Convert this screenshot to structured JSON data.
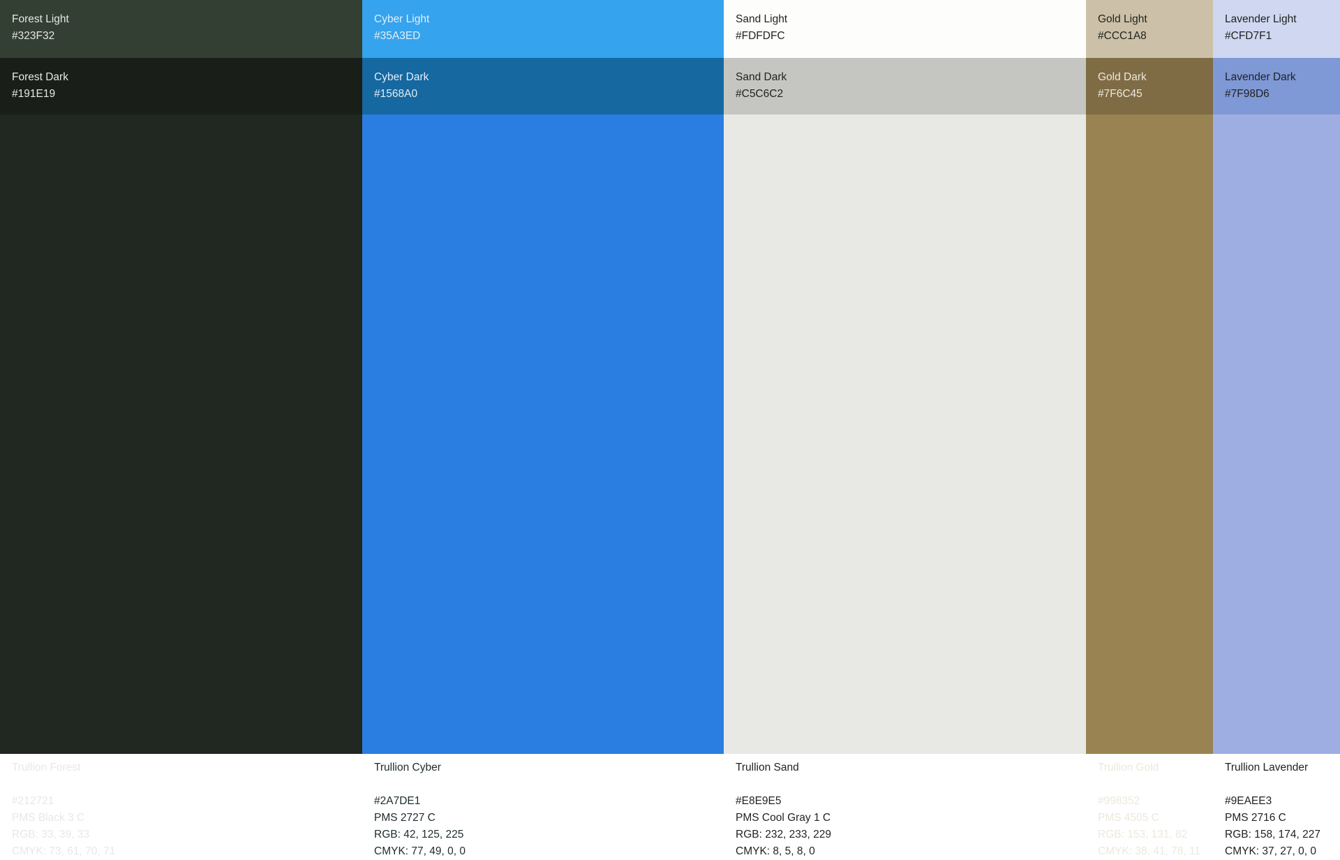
{
  "palette": [
    {
      "light": {
        "name": "Forest Light",
        "hex": "#323F32",
        "text_color": "#E6E8E6"
      },
      "dark": {
        "name": "Forest Dark",
        "hex": "#191E19",
        "text_color": "#E6E8E6"
      },
      "main": {
        "name": "Trullion Forest",
        "hex": "#212721",
        "pms": "PMS Black 3 C",
        "rgb": "RGB: 33, 39, 33",
        "cmyk": "CMYK:  73, 61, 70, 71",
        "text_color": "#E6E8E6"
      }
    },
    {
      "light": {
        "name": "Cyber Light",
        "hex": "#35A3ED",
        "text_color": "#E3EEF8"
      },
      "dark": {
        "name": "Cyber Dark",
        "hex": "#1568A0",
        "text_color": "#E3EEF8"
      },
      "main": {
        "name": "Trullion Cyber",
        "hex": "#2A7DE1",
        "pms": "PMS 2727 C",
        "rgb": "RGB: 42, 125, 225",
        "cmyk": "CMYK:  77, 49, 0, 0",
        "text_color": "#1E2A2E"
      }
    },
    {
      "light": {
        "name": "Sand Light",
        "hex": "#FDFDFC",
        "text_color": "#1E221E"
      },
      "dark": {
        "name": "Sand Dark",
        "hex": "#C5C6C2",
        "text_color": "#1E221E"
      },
      "main": {
        "name": "Trullion Sand",
        "hex": "#E8E9E5",
        "pms": "PMS Cool Gray 1 C",
        "rgb": "RGB: 232, 233, 229",
        "cmyk": "CMYK:  8, 5, 8, 0",
        "text_color": "#1E221E"
      }
    },
    {
      "light": {
        "name": "Gold Light",
        "hex": "#CCC1A8",
        "text_color": "#1E221E"
      },
      "dark": {
        "name": "Gold Dark",
        "hex": "#7F6C45",
        "text_color": "#EDE8DC"
      },
      "main": {
        "name": "Trullion Gold",
        "hex": "#998352",
        "pms": "PMS 4505 C",
        "rgb": "RGB: 153, 131, 82",
        "cmyk": "CMYK:  38, 41, 78, 11",
        "text_color": "#EDE8DC"
      }
    },
    {
      "light": {
        "name": "Lavender Light",
        "hex": "#CFD7F1",
        "text_color": "#1E221E"
      },
      "dark": {
        "name": "Lavender Dark",
        "hex": "#7F98D6",
        "text_color": "#1E221E"
      },
      "main": {
        "name": "Trullion Lavender",
        "hex": "#9EAEE3",
        "pms": "PMS 2716 C",
        "rgb": "RGB: 158, 174, 227",
        "cmyk": "CMYK:  37, 27, 0, 0",
        "text_color": "#1E221E"
      }
    }
  ]
}
